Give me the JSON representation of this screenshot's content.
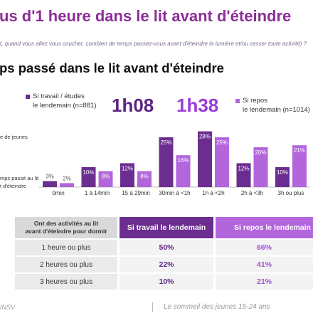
{
  "title": "us d'1 heure dans le lit avant d'éteindre",
  "question": "t, quand vous allez vous coucher, combien de temps passez-vous avant d'éteindre la lumière et/ou cesser toute activité) ?",
  "colors": {
    "title": "#8B2F97",
    "work": "#6B2D8F",
    "rest": "#B366DC"
  },
  "chart_data": {
    "type": "bar",
    "title": "ps passé dans le lit avant d'éteindre",
    "categories": [
      "0min",
      "1 à 14min",
      "15 à 29min",
      "30min à <1h",
      "1h à <2h",
      "2h à <3h",
      "3h ou plus"
    ],
    "series": [
      {
        "name": "Si travail / études\nle lendemain (n=881)",
        "average": "1h08",
        "color": "#6B2D8F",
        "values": [
          3,
          10,
          12,
          25,
          28,
          12,
          10
        ]
      },
      {
        "name": "Si repos\nle lendemain (n=1014)",
        "average": "1h38",
        "color": "#B366DC",
        "values": [
          2,
          8,
          8,
          16,
          25,
          20,
          21
        ]
      }
    ],
    "value_suffix": "%",
    "ylabel": "e de jeunes",
    "xlabel": "mps passé au lit\nt d'éteindre",
    "ylim": [
      0,
      30
    ],
    "grid": false,
    "legend": "top"
  },
  "table": {
    "header": {
      "label": "Ont des activités au lit\navant d'éteindre pour dormir",
      "work": "Si travail le lendemain",
      "rest": "Si repos le lendemain"
    },
    "rows": [
      {
        "label": "1 heure ou plus",
        "work": "50%",
        "rest": "66%"
      },
      {
        "label": "2 heures ou plus",
        "work": "22%",
        "rest": "41%"
      },
      {
        "label": "3 heures ou plus",
        "work": "10%",
        "rest": "21%"
      }
    ]
  },
  "footer": {
    "left": "INSV",
    "right": "Le sommeil des jeunes 15-24 ans"
  }
}
